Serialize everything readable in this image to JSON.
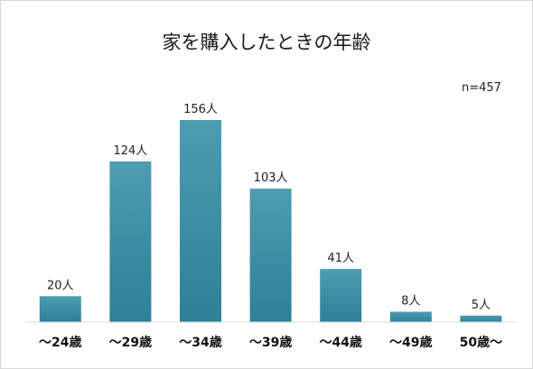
{
  "chart_data": {
    "type": "bar",
    "title": "家を購入したときの年齢",
    "annotation": "n=457",
    "unit": "人",
    "categories": [
      "～24歳",
      "～29歳",
      "～34歳",
      "～39歳",
      "～44歳",
      "～49歳",
      "50歳～"
    ],
    "values": [
      20,
      124,
      156,
      103,
      41,
      8,
      5
    ],
    "data_labels": [
      "20人",
      "124人",
      "156人",
      "103人",
      "41人",
      "8人",
      "5人"
    ],
    "ylim": [
      0,
      156
    ],
    "grid": false,
    "legend": "none",
    "colors": {
      "bar_top": "#4e9cb1",
      "bar_bottom": "#2d8097",
      "axis": "#d9d9d9"
    }
  }
}
